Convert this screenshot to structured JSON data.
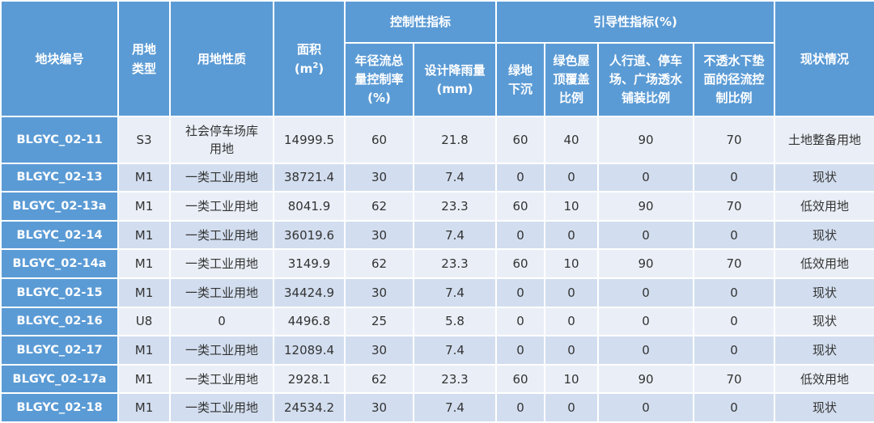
{
  "headers": {
    "plot_id": "地块编号",
    "land_type": "用地\n类型",
    "land_nature": "用地性质",
    "area_label": "面积",
    "area_unit_prefix": "(m",
    "area_unit_sup": "2",
    "area_unit_suffix": ")",
    "control_group": "控制性指标",
    "guide_group": "引导性指标(%)",
    "status": "现状情况",
    "control_cols": [
      "年径流总\n量控制率\n(%)",
      "设计降雨量\n(mm)"
    ],
    "guide_cols": [
      "绿地\n下沉",
      "绿色屋\n顶覆盖\n比例",
      "人行道、停车\n场、广场透水\n铺装比例",
      "不透水下垫\n面的径流控\n制比例"
    ]
  },
  "rows": [
    {
      "id": "BLGYC_02-11",
      "type": "S3",
      "nature": "社会停车场库\n用地",
      "area": "14999.5",
      "runoff": "60",
      "rain": "21.8",
      "green": "60",
      "roof": "40",
      "pave": "90",
      "imperv": "70",
      "status": "土地整备用地"
    },
    {
      "id": "BLGYC_02-13",
      "type": "M1",
      "nature": "一类工业用地",
      "area": "38721.4",
      "runoff": "30",
      "rain": "7.4",
      "green": "0",
      "roof": "0",
      "pave": "0",
      "imperv": "0",
      "status": "现状"
    },
    {
      "id": "BLGYC_02-13a",
      "type": "M1",
      "nature": "一类工业用地",
      "area": "8041.9",
      "runoff": "62",
      "rain": "23.3",
      "green": "60",
      "roof": "10",
      "pave": "90",
      "imperv": "70",
      "status": "低效用地"
    },
    {
      "id": "BLGYC_02-14",
      "type": "M1",
      "nature": "一类工业用地",
      "area": "36019.6",
      "runoff": "30",
      "rain": "7.4",
      "green": "0",
      "roof": "0",
      "pave": "0",
      "imperv": "0",
      "status": "现状"
    },
    {
      "id": "BLGYC_02-14a",
      "type": "M1",
      "nature": "一类工业用地",
      "area": "3149.9",
      "runoff": "62",
      "rain": "23.3",
      "green": "60",
      "roof": "10",
      "pave": "90",
      "imperv": "70",
      "status": "低效用地"
    },
    {
      "id": "BLGYC_02-15",
      "type": "M1",
      "nature": "一类工业用地",
      "area": "34424.9",
      "runoff": "30",
      "rain": "7.4",
      "green": "0",
      "roof": "0",
      "pave": "0",
      "imperv": "0",
      "status": "现状"
    },
    {
      "id": "BLGYC_02-16",
      "type": "U8",
      "nature": "0",
      "area": "4496.8",
      "runoff": "25",
      "rain": "5.8",
      "green": "0",
      "roof": "0",
      "pave": "0",
      "imperv": "0",
      "status": "现状"
    },
    {
      "id": "BLGYC_02-17",
      "type": "M1",
      "nature": "一类工业用地",
      "area": "12089.4",
      "runoff": "30",
      "rain": "7.4",
      "green": "0",
      "roof": "0",
      "pave": "0",
      "imperv": "0",
      "status": "现状"
    },
    {
      "id": "BLGYC_02-17a",
      "type": "M1",
      "nature": "一类工业用地",
      "area": "2928.1",
      "runoff": "62",
      "rain": "23.3",
      "green": "60",
      "roof": "10",
      "pave": "90",
      "imperv": "70",
      "status": "低效用地"
    },
    {
      "id": "BLGYC_02-18",
      "type": "M1",
      "nature": "一类工业用地",
      "area": "24534.2",
      "runoff": "30",
      "rain": "7.4",
      "green": "0",
      "roof": "0",
      "pave": "0",
      "imperv": "0",
      "status": "现状"
    }
  ]
}
